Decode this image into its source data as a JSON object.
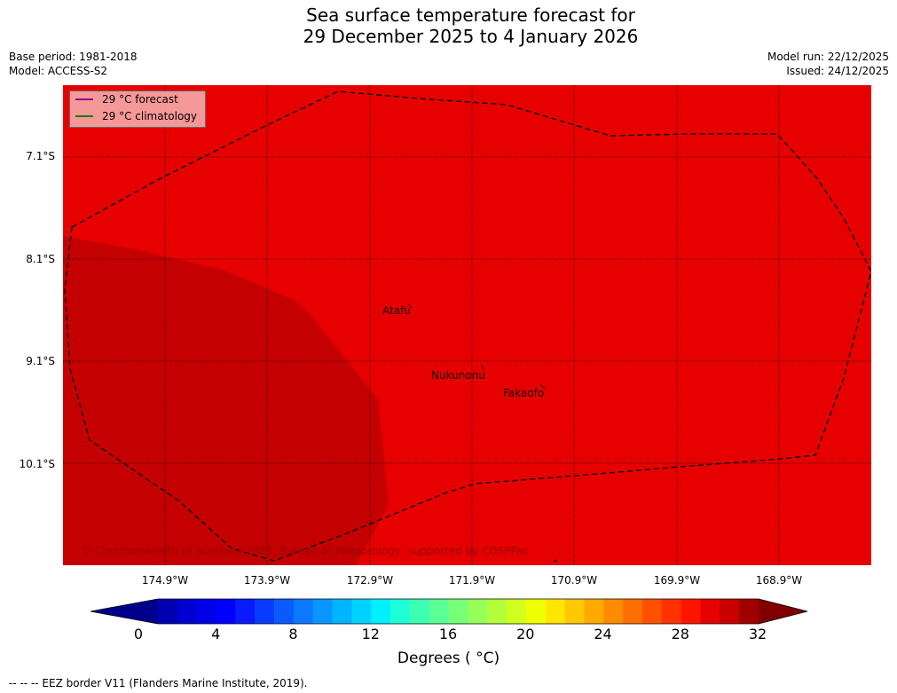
{
  "title": {
    "line1": "Sea surface temperature forecast for",
    "line2": "29 December 2025 to 4 January 2026"
  },
  "meta": {
    "base_period": "Base period: 1981-2018",
    "model": "Model: ACCESS-S2",
    "model_run": "Model run: 22/12/2025",
    "issued": "Issued: 24/12/2025"
  },
  "map": {
    "lat_labels": [
      "7.1°S",
      "8.1°S",
      "9.1°S",
      "10.1°S"
    ],
    "lon_labels": [
      "174.9°W",
      "173.9°W",
      "172.9°W",
      "171.9°W",
      "170.9°W",
      "169.9°W",
      "168.9°W"
    ],
    "places": [
      "Atafu",
      "Nukunonu",
      "Fakaofo"
    ],
    "copyright": "© Commonwealth of Australia 2025, Bureau of Meteorology, supported by COSPPac",
    "colors": {
      "warm_fill": "#e60000",
      "warmer_fill": "#c40000"
    }
  },
  "legend": {
    "forecast_label": "29 °C  forecast",
    "forecast_color": "#8b008b",
    "climatology_label": "29 °C  climatology",
    "climatology_color": "#008000"
  },
  "colorbar": {
    "ticks": [
      "0",
      "4",
      "8",
      "12",
      "16",
      "20",
      "24",
      "28",
      "32"
    ],
    "label": "Degrees ( °C)",
    "colors": [
      "#0000b0",
      "#0000d0",
      "#0000e8",
      "#0000ff",
      "#0a1aff",
      "#0a3cff",
      "#0a5aff",
      "#0a78ff",
      "#0a96ff",
      "#00b4ff",
      "#00d2ff",
      "#00f0ff",
      "#1effd8",
      "#3cffb4",
      "#5aff96",
      "#78ff78",
      "#96ff5a",
      "#b4ff3c",
      "#d2ff1e",
      "#f0ff00",
      "#ffe600",
      "#ffc800",
      "#ffaa00",
      "#ff8c00",
      "#ff6e00",
      "#ff5000",
      "#ff3200",
      "#ff1400",
      "#e60000",
      "#c80000",
      "#a00000"
    ],
    "min_color": "#00008b",
    "max_color": "#800000"
  },
  "footnote": "--  --  -- EEZ border V11 (Flanders Marine Institute, 2019)."
}
